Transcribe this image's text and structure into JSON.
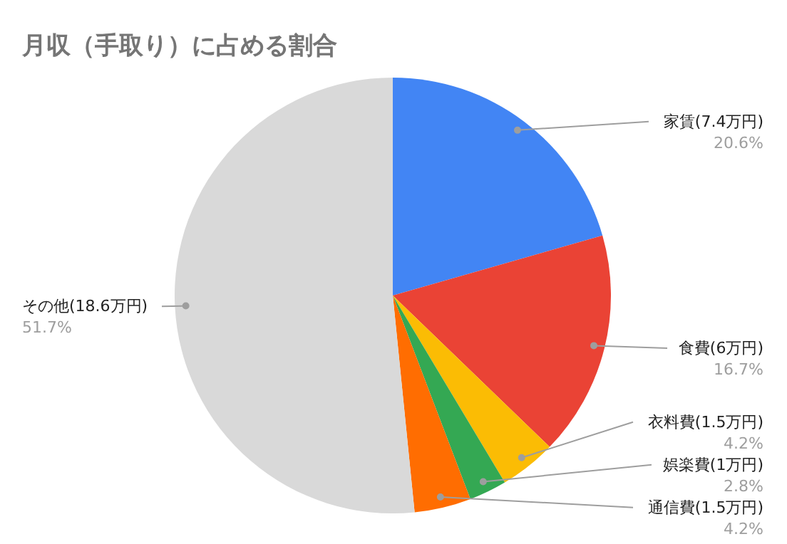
{
  "chart_data": {
    "type": "pie",
    "title": "月収（手取り）に占める割合",
    "categories": [
      "家賃(7.4万円)",
      "食費(6万円)",
      "衣料費(1.5万円)",
      "娯楽費(1万円)",
      "通信費(1.5万円)",
      "その他(18.6万円)"
    ],
    "values": [
      20.6,
      16.7,
      4.2,
      2.8,
      4.2,
      51.7
    ],
    "colors": [
      "#4285f4",
      "#ea4335",
      "#fbbc04",
      "#34a853",
      "#ff6d01",
      "#d9d9d9"
    ],
    "value_labels": [
      "20.6%",
      "16.7%",
      "4.2%",
      "2.8%",
      "4.2%",
      "51.7%"
    ]
  }
}
